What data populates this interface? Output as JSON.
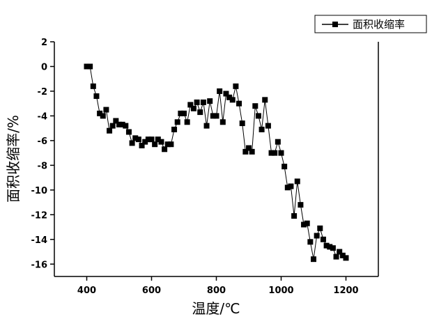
{
  "chart_data": {
    "type": "line",
    "x_label": "温度/℃",
    "y_label": "面积收缩率/%",
    "xlim": [
      300,
      1300
    ],
    "xticks": [
      400,
      600,
      800,
      1000,
      1200
    ],
    "ylim": [
      -17,
      2
    ],
    "yticks": [
      2,
      0,
      -2,
      -4,
      -6,
      -8,
      -10,
      -12,
      -14,
      -16
    ],
    "legend": "top-right",
    "series": [
      {
        "name": "面积收缩率",
        "color": "#000000",
        "x": [
          400,
          410,
          420,
          430,
          440,
          450,
          460,
          470,
          480,
          490,
          500,
          510,
          520,
          530,
          540,
          550,
          560,
          570,
          580,
          590,
          600,
          610,
          620,
          630,
          640,
          650,
          660,
          670,
          680,
          690,
          700,
          710,
          720,
          730,
          740,
          750,
          760,
          770,
          780,
          790,
          800,
          810,
          820,
          830,
          840,
          850,
          860,
          870,
          880,
          890,
          900,
          910,
          920,
          930,
          940,
          950,
          960,
          970,
          980,
          990,
          1000,
          1010,
          1020,
          1030,
          1040,
          1050,
          1060,
          1070,
          1080,
          1090,
          1100,
          1110,
          1120,
          1130,
          1140,
          1150,
          1160,
          1170,
          1180,
          1190,
          1200
        ],
        "values": [
          0,
          0,
          -1.6,
          -2.4,
          -3.8,
          -4.0,
          -3.5,
          -5.2,
          -4.8,
          -4.4,
          -4.7,
          -4.7,
          -4.8,
          -5.3,
          -6.2,
          -5.8,
          -5.9,
          -6.4,
          -6.1,
          -5.9,
          -5.9,
          -6.3,
          -5.9,
          -6.1,
          -6.7,
          -6.3,
          -6.3,
          -5.1,
          -4.5,
          -3.8,
          -3.8,
          -4.5,
          -3.1,
          -3.4,
          -2.9,
          -3.7,
          -2.9,
          -4.8,
          -2.8,
          -4.0,
          -4.0,
          -2.0,
          -4.5,
          -2.2,
          -2.5,
          -2.7,
          -1.6,
          -3.0,
          -4.6,
          -6.9,
          -6.6,
          -6.9,
          -3.2,
          -4.0,
          -5.1,
          -2.7,
          -4.8,
          -7.0,
          -7.0,
          -6.1,
          -7.0,
          -8.1,
          -9.8,
          -9.7,
          -12.1,
          -9.3,
          -11.2,
          -12.8,
          -12.7,
          -14.2,
          -15.6,
          -13.7,
          -13.1,
          -14.0,
          -14.5,
          -14.6,
          -14.7,
          -15.4,
          -15.0,
          -15.3,
          -15.5
        ]
      }
    ]
  }
}
